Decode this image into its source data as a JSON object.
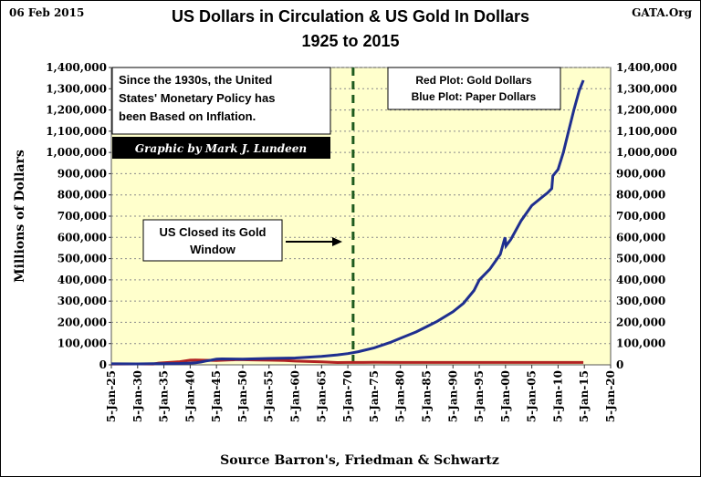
{
  "header": {
    "date": "06 Feb 2015",
    "source_site": "GATA.Org",
    "title_line1": "US Dollars in Circulation & US Gold In Dollars",
    "title_line2": "1925 to 2015"
  },
  "callouts": {
    "policy_line1": "Since the 1930s, the United",
    "policy_line2": "States' Monetary Policy has",
    "policy_line3": "been Based on Inflation.",
    "credit": "Graphic by Mark J. Lundeen",
    "legend_line1": "Red Plot: Gold Dollars",
    "legend_line2": "Blue Plot: Paper Dollars",
    "gold_window_line1": "US Closed its Gold",
    "gold_window_line2": "Window"
  },
  "footer": {
    "source": "Source Barron's,  Friedman & Schwartz"
  },
  "colors": {
    "plot_background": "#ffffcc",
    "paper_dollars": "#1f2f8f",
    "gold_dollars": "#b22222",
    "gold_window_line": "#1e5a1e",
    "credit_background": "#000000"
  },
  "chart_data": {
    "type": "line",
    "title": "US Dollars in Circulation & US Gold In Dollars 1925 to 2015",
    "ylabel": "Millions of Dollars",
    "xlabel": "",
    "ylim": [
      0,
      1400000
    ],
    "xlim": [
      1925,
      2020
    ],
    "grid": true,
    "y_ticks": [
      0,
      100000,
      200000,
      300000,
      400000,
      500000,
      600000,
      700000,
      800000,
      900000,
      1000000,
      1100000,
      1200000,
      1300000,
      1400000
    ],
    "y_tick_labels": [
      "0",
      "100,000",
      "200,000",
      "300,000",
      "400,000",
      "500,000",
      "600,000",
      "700,000",
      "800,000",
      "900,000",
      "1,000,000",
      "1,100,000",
      "1,200,000",
      "1,300,000",
      "1,400,000"
    ],
    "x_ticks": [
      1925,
      1930,
      1935,
      1940,
      1945,
      1950,
      1955,
      1960,
      1965,
      1970,
      1975,
      1980,
      1985,
      1990,
      1995,
      2000,
      2005,
      2010,
      2015,
      2020
    ],
    "x_tick_labels": [
      "5-Jan-25",
      "5-Jan-30",
      "5-Jan-35",
      "5-Jan-40",
      "5-Jan-45",
      "5-Jan-50",
      "5-Jan-55",
      "5-Jan-60",
      "5-Jan-65",
      "5-Jan-70",
      "5-Jan-75",
      "5-Jan-80",
      "5-Jan-85",
      "5-Jan-90",
      "5-Jan-95",
      "5-Jan-00",
      "5-Jan-05",
      "5-Jan-10",
      "5-Jan-15",
      "5-Jan-20"
    ],
    "series": [
      {
        "name": "Paper Dollars",
        "color": "#1f2f8f",
        "points": [
          [
            1925,
            4800
          ],
          [
            1930,
            4500
          ],
          [
            1933,
            5500
          ],
          [
            1935,
            5500
          ],
          [
            1938,
            6500
          ],
          [
            1940,
            8000
          ],
          [
            1941,
            9500
          ],
          [
            1942,
            13000
          ],
          [
            1943,
            18000
          ],
          [
            1944,
            22000
          ],
          [
            1945,
            27000
          ],
          [
            1946,
            28000
          ],
          [
            1950,
            27000
          ],
          [
            1955,
            30000
          ],
          [
            1960,
            32000
          ],
          [
            1965,
            40000
          ],
          [
            1968,
            47000
          ],
          [
            1970,
            53000
          ],
          [
            1972,
            62000
          ],
          [
            1975,
            80000
          ],
          [
            1978,
            105000
          ],
          [
            1980,
            125000
          ],
          [
            1983,
            155000
          ],
          [
            1985,
            180000
          ],
          [
            1987,
            205000
          ],
          [
            1990,
            250000
          ],
          [
            1992,
            290000
          ],
          [
            1994,
            350000
          ],
          [
            1995,
            400000
          ],
          [
            1997,
            450000
          ],
          [
            1999,
            520000
          ],
          [
            1999.9,
            600000
          ],
          [
            2000.1,
            560000
          ],
          [
            2001,
            590000
          ],
          [
            2003,
            680000
          ],
          [
            2005,
            750000
          ],
          [
            2007,
            790000
          ],
          [
            2008,
            810000
          ],
          [
            2008.8,
            830000
          ],
          [
            2009,
            890000
          ],
          [
            2010,
            920000
          ],
          [
            2011,
            1000000
          ],
          [
            2012,
            1100000
          ],
          [
            2013,
            1200000
          ],
          [
            2014,
            1290000
          ],
          [
            2014.8,
            1340000
          ]
        ]
      },
      {
        "name": "Gold Dollars",
        "color": "#b22222",
        "points": [
          [
            1925,
            4000
          ],
          [
            1930,
            4200
          ],
          [
            1933,
            4000
          ],
          [
            1934,
            8000
          ],
          [
            1935,
            10000
          ],
          [
            1938,
            14500
          ],
          [
            1940,
            22000
          ],
          [
            1941,
            22700
          ],
          [
            1944,
            21000
          ],
          [
            1945,
            20000
          ],
          [
            1949,
            24500
          ],
          [
            1952,
            23000
          ],
          [
            1955,
            21700
          ],
          [
            1958,
            20500
          ],
          [
            1960,
            17800
          ],
          [
            1965,
            13800
          ],
          [
            1968,
            10900
          ],
          [
            1970,
            11000
          ],
          [
            1973,
            11000
          ],
          [
            1975,
            11600
          ],
          [
            1980,
            11200
          ],
          [
            1990,
            11100
          ],
          [
            2000,
            11000
          ],
          [
            2010,
            11000
          ],
          [
            2014.8,
            11000
          ]
        ]
      }
    ],
    "annotations": [
      {
        "text": "US Closed its Gold Window",
        "x": 1971
      }
    ]
  }
}
